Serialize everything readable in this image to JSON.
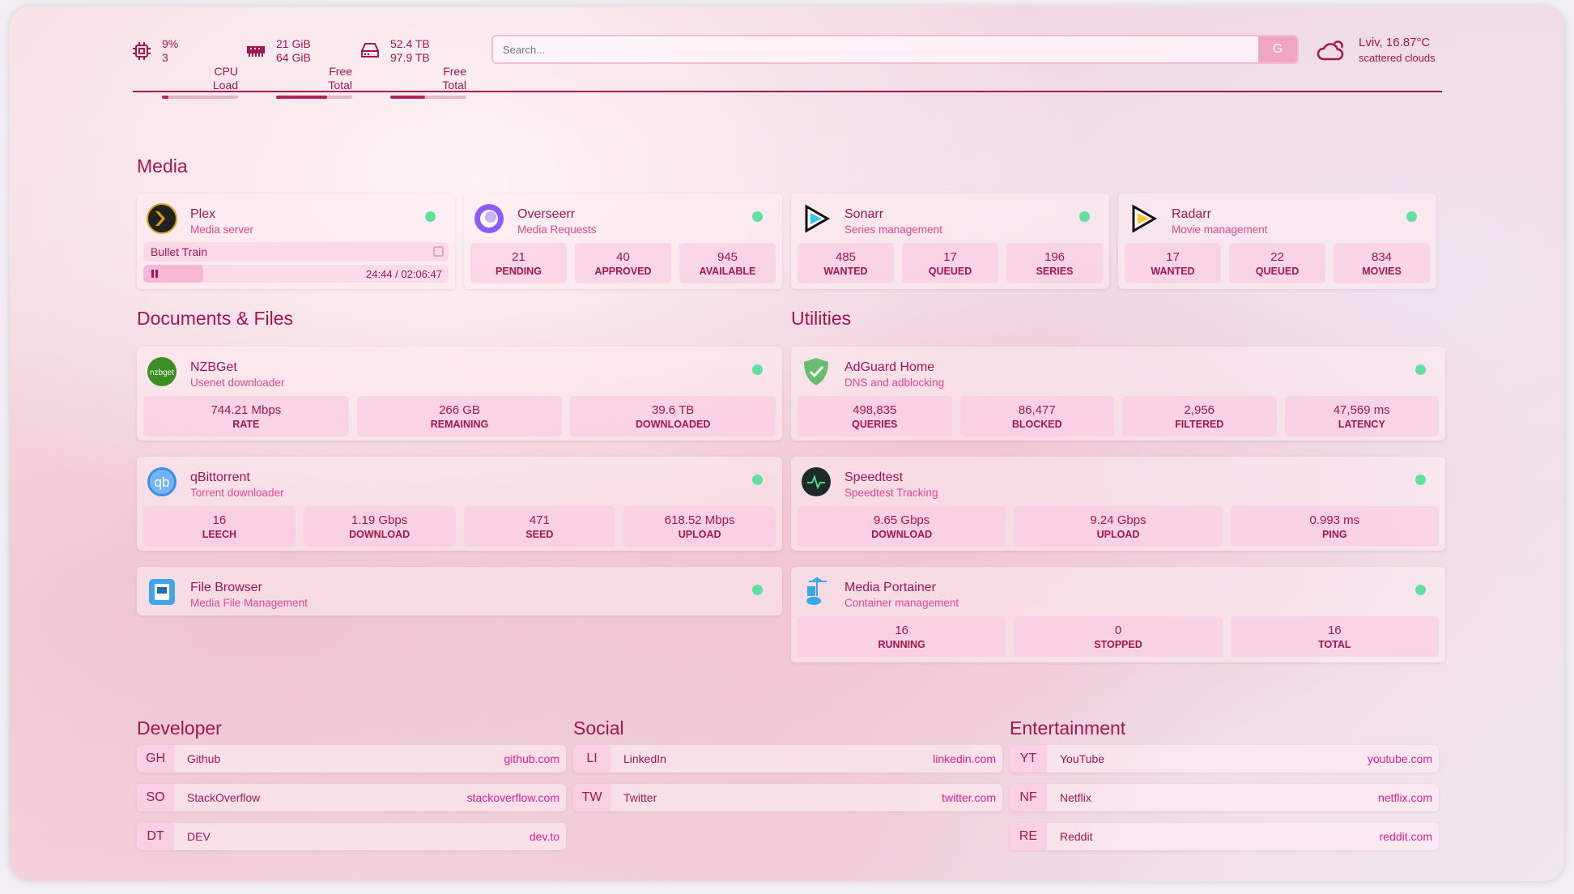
{
  "colors": {
    "accent": "#a3164e",
    "subtitle": "#e2488c",
    "status_online": "#5fe0a0",
    "link": "#e2218a"
  },
  "header": {
    "cpu": {
      "icon": "cpu-icon",
      "value": "9%",
      "sub": "3",
      "label1": "CPU",
      "label2": "Load",
      "percent": 9
    },
    "memory": {
      "icon": "memory-icon",
      "value": "21 GiB",
      "sub": "64 GiB",
      "label1": "Free",
      "label2": "Total",
      "percent": 67
    },
    "disk": {
      "icon": "disk-icon",
      "value": "52.4 TB",
      "sub": "97.9 TB",
      "label1": "Free",
      "label2": "Total",
      "percent": 46
    },
    "search": {
      "placeholder": "Search...",
      "button": "G"
    },
    "weather": {
      "icon": "cloud-icon",
      "location": "Lviv, 16.87°C",
      "description": "scattered clouds"
    }
  },
  "media": {
    "title": "Media",
    "cards": [
      {
        "name": "Plex",
        "desc": "Media server",
        "icon": "plex-icon",
        "now_playing": {
          "title": "Bullet Train",
          "time": "24:44 / 02:06:47",
          "progress": 0.195
        }
      },
      {
        "name": "Overseerr",
        "desc": "Media Requests",
        "icon": "overseerr-icon",
        "stats": [
          {
            "v": "21",
            "l": "PENDING"
          },
          {
            "v": "40",
            "l": "APPROVED"
          },
          {
            "v": "945",
            "l": "AVAILABLE"
          }
        ]
      },
      {
        "name": "Sonarr",
        "desc": "Series management",
        "icon": "sonarr-icon",
        "stats": [
          {
            "v": "485",
            "l": "WANTED"
          },
          {
            "v": "17",
            "l": "QUEUED"
          },
          {
            "v": "196",
            "l": "SERIES"
          }
        ]
      },
      {
        "name": "Radarr",
        "desc": "Movie management",
        "icon": "radarr-icon",
        "stats": [
          {
            "v": "17",
            "l": "WANTED"
          },
          {
            "v": "22",
            "l": "QUEUED"
          },
          {
            "v": "834",
            "l": "MOVIES"
          }
        ]
      }
    ]
  },
  "documents": {
    "title": "Documents & Files",
    "cards": [
      {
        "name": "NZBGet",
        "desc": "Usenet downloader",
        "icon": "nzbget-icon",
        "stats": [
          {
            "v": "744.21 Mbps",
            "l": "RATE"
          },
          {
            "v": "266 GB",
            "l": "REMAINING"
          },
          {
            "v": "39.6 TB",
            "l": "DOWNLOADED"
          }
        ]
      },
      {
        "name": "qBittorrent",
        "desc": "Torrent downloader",
        "icon": "qbittorrent-icon",
        "stats": [
          {
            "v": "16",
            "l": "LEECH"
          },
          {
            "v": "1.19 Gbps",
            "l": "DOWNLOAD"
          },
          {
            "v": "471",
            "l": "SEED"
          },
          {
            "v": "618.52 Mbps",
            "l": "UPLOAD"
          }
        ]
      },
      {
        "name": "File Browser",
        "desc": "Media File Management",
        "icon": "filebrowser-icon"
      }
    ]
  },
  "utilities": {
    "title": "Utilities",
    "cards": [
      {
        "name": "AdGuard Home",
        "desc": "DNS and adblocking",
        "icon": "adguard-icon",
        "stats": [
          {
            "v": "498,835",
            "l": "QUERIES"
          },
          {
            "v": "86,477",
            "l": "BLOCKED"
          },
          {
            "v": "2,956",
            "l": "FILTERED"
          },
          {
            "v": "47,569 ms",
            "l": "LATENCY"
          }
        ]
      },
      {
        "name": "Speedtest",
        "desc": "Speedtest Tracking",
        "icon": "speedtest-icon",
        "stats": [
          {
            "v": "9.65 Gbps",
            "l": "DOWNLOAD"
          },
          {
            "v": "9.24 Gbps",
            "l": "UPLOAD"
          },
          {
            "v": "0.993 ms",
            "l": "PING"
          }
        ]
      },
      {
        "name": "Media Portainer",
        "desc": "Container management",
        "icon": "portainer-icon",
        "stats": [
          {
            "v": "16",
            "l": "RUNNING"
          },
          {
            "v": "0",
            "l": "STOPPED"
          },
          {
            "v": "16",
            "l": "TOTAL"
          }
        ]
      }
    ]
  },
  "bookmarks": [
    {
      "title": "Developer",
      "links": [
        {
          "abbr": "GH",
          "name": "Github",
          "url": "github.com"
        },
        {
          "abbr": "SO",
          "name": "StackOverflow",
          "url": "stackoverflow.com"
        },
        {
          "abbr": "DT",
          "name": "DEV",
          "url": "dev.to"
        }
      ]
    },
    {
      "title": "Social",
      "links": [
        {
          "abbr": "LI",
          "name": "LinkedIn",
          "url": "linkedin.com"
        },
        {
          "abbr": "TW",
          "name": "Twitter",
          "url": "twitter.com"
        }
      ]
    },
    {
      "title": "Entertainment",
      "links": [
        {
          "abbr": "YT",
          "name": "YouTube",
          "url": "youtube.com"
        },
        {
          "abbr": "NF",
          "name": "Netflix",
          "url": "netflix.com"
        },
        {
          "abbr": "RE",
          "name": "Reddit",
          "url": "reddit.com"
        }
      ]
    }
  ]
}
